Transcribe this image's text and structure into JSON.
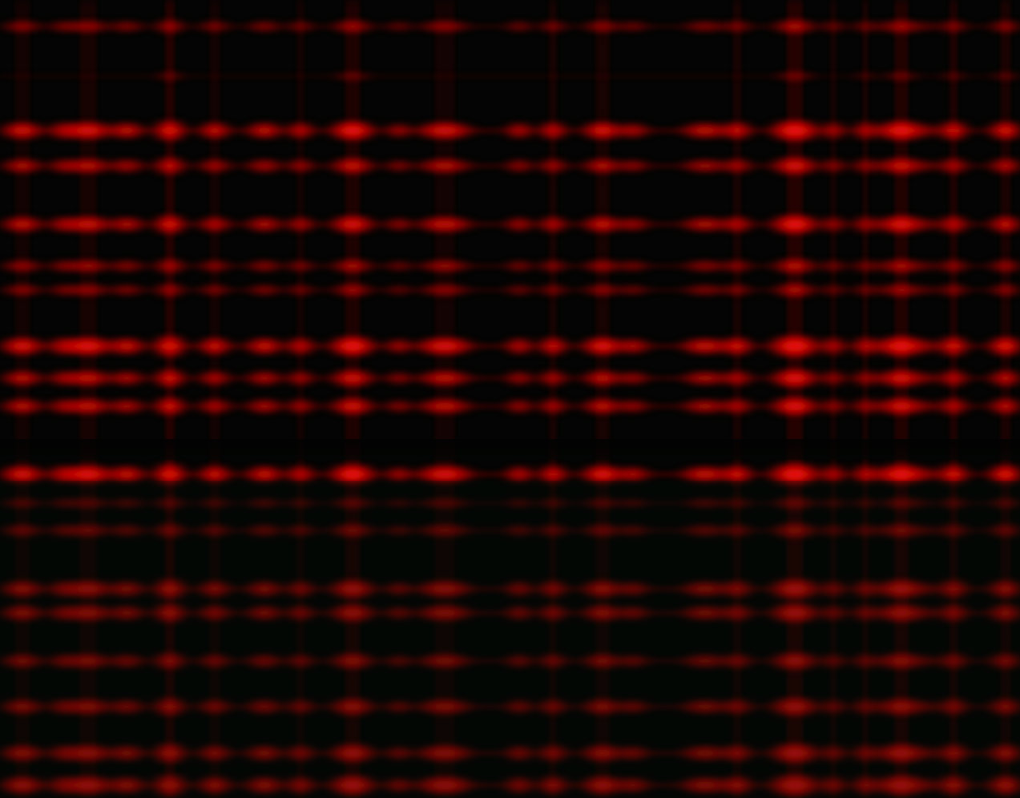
{
  "image": {
    "description_colors": {
      "background": "#030504",
      "spot": "#e00000",
      "spot_core": "#ff1a10",
      "lower_tint": "#06120b"
    },
    "pattern": {
      "row_intensity": [
        0.55,
        0.3,
        0.95,
        0.75,
        0.85,
        0.6,
        0.55,
        1.0,
        0.8,
        0.8,
        1.0,
        0.45,
        0.6,
        0.9,
        0.85,
        0.75,
        0.8,
        0.9,
        1.0
      ],
      "column_intensity": [
        0.75,
        0.7,
        0.8,
        0.7,
        1.0,
        0.75,
        0.7,
        0.75,
        0.9,
        0.6,
        0.75,
        0.7,
        0.8,
        0.8,
        0.6,
        0.65,
        0.8,
        1.0,
        0.8,
        0.85,
        0.95,
        0.6,
        0.5,
        0.9,
        0.85,
        0.55
      ]
    }
  }
}
